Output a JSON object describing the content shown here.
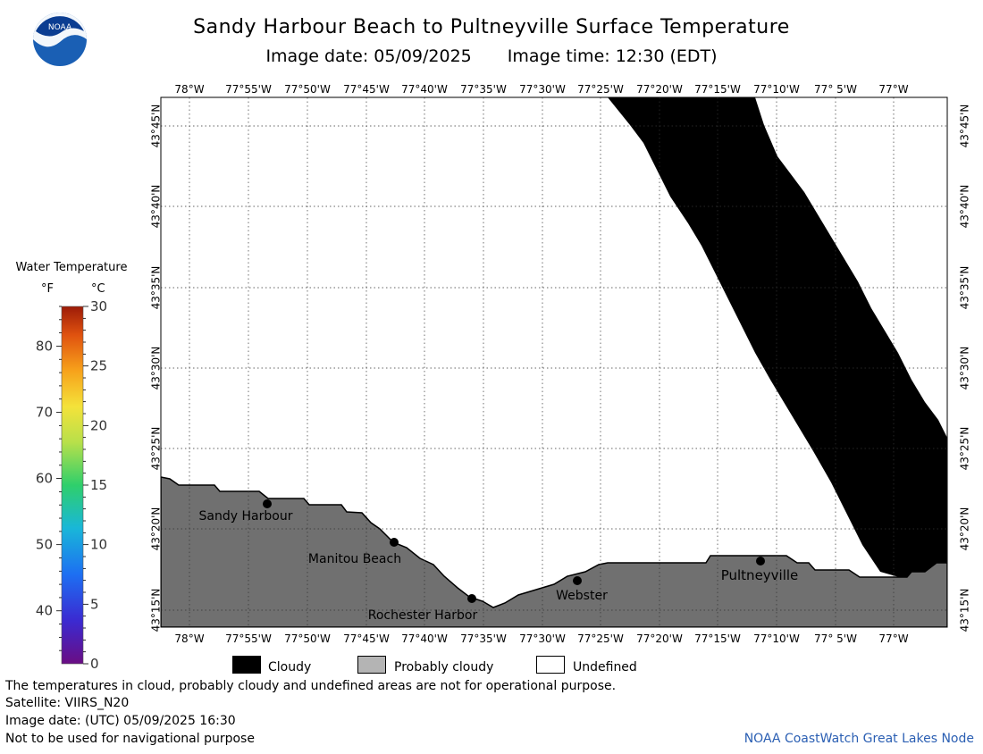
{
  "header": {
    "title": "Sandy Harbour Beach to Pultneyville Surface Temperature",
    "image_date": "Image date: 05/09/2025",
    "image_time": "Image time: 12:30 (EDT)",
    "logo_text": "NOAA"
  },
  "map": {
    "lon_labels": [
      "78°W",
      "77°55'W",
      "77°50'W",
      "77°45'W",
      "77°40'W",
      "77°35'W",
      "77°30'W",
      "77°25'W",
      "77°20'W",
      "77°15'W",
      "77°10'W",
      "77° 5'W",
      "77°W"
    ],
    "lat_labels": [
      "43°45'N",
      "43°40'N",
      "43°35'N",
      "43°30'N",
      "43°25'N",
      "43°20'N",
      "43°15'N"
    ],
    "places": [
      {
        "name": "Sandy Harbour"
      },
      {
        "name": "Manitou Beach"
      },
      {
        "name": "Rochester Harbor"
      },
      {
        "name": "Webster"
      },
      {
        "name": "Pultneyville"
      }
    ],
    "colors": {
      "land": "#707070",
      "cloud": "#000000",
      "water_undefined": "#ffffff",
      "grid": "#333333"
    }
  },
  "colorbar": {
    "title": "Water Temperature",
    "unit_f": "°F",
    "unit_c": "°C",
    "f_ticks": [
      "80",
      "70",
      "60",
      "50",
      "40"
    ],
    "c_ticks": [
      "30",
      "25",
      "20",
      "15",
      "10",
      "5",
      "0"
    ],
    "range_c": [
      0,
      30
    ]
  },
  "legend": {
    "cloudy": "Cloudy",
    "probably_cloudy": "Probably cloudy",
    "undefined": "Undefined",
    "cloudy_color": "#000000",
    "probably_cloudy_color": "#b4b4b4",
    "undefined_color": "#ffffff"
  },
  "notes": {
    "disclaimer": "The temperatures in cloud, probably cloudy and undefined areas are not for operational purpose.",
    "satellite": "Satellite: VIIRS_N20",
    "utc_date": "Image date: (UTC) 05/09/2025  16:30",
    "nav": "Not to be used for navigational purpose",
    "credit": "NOAA CoastWatch Great Lakes Node"
  }
}
